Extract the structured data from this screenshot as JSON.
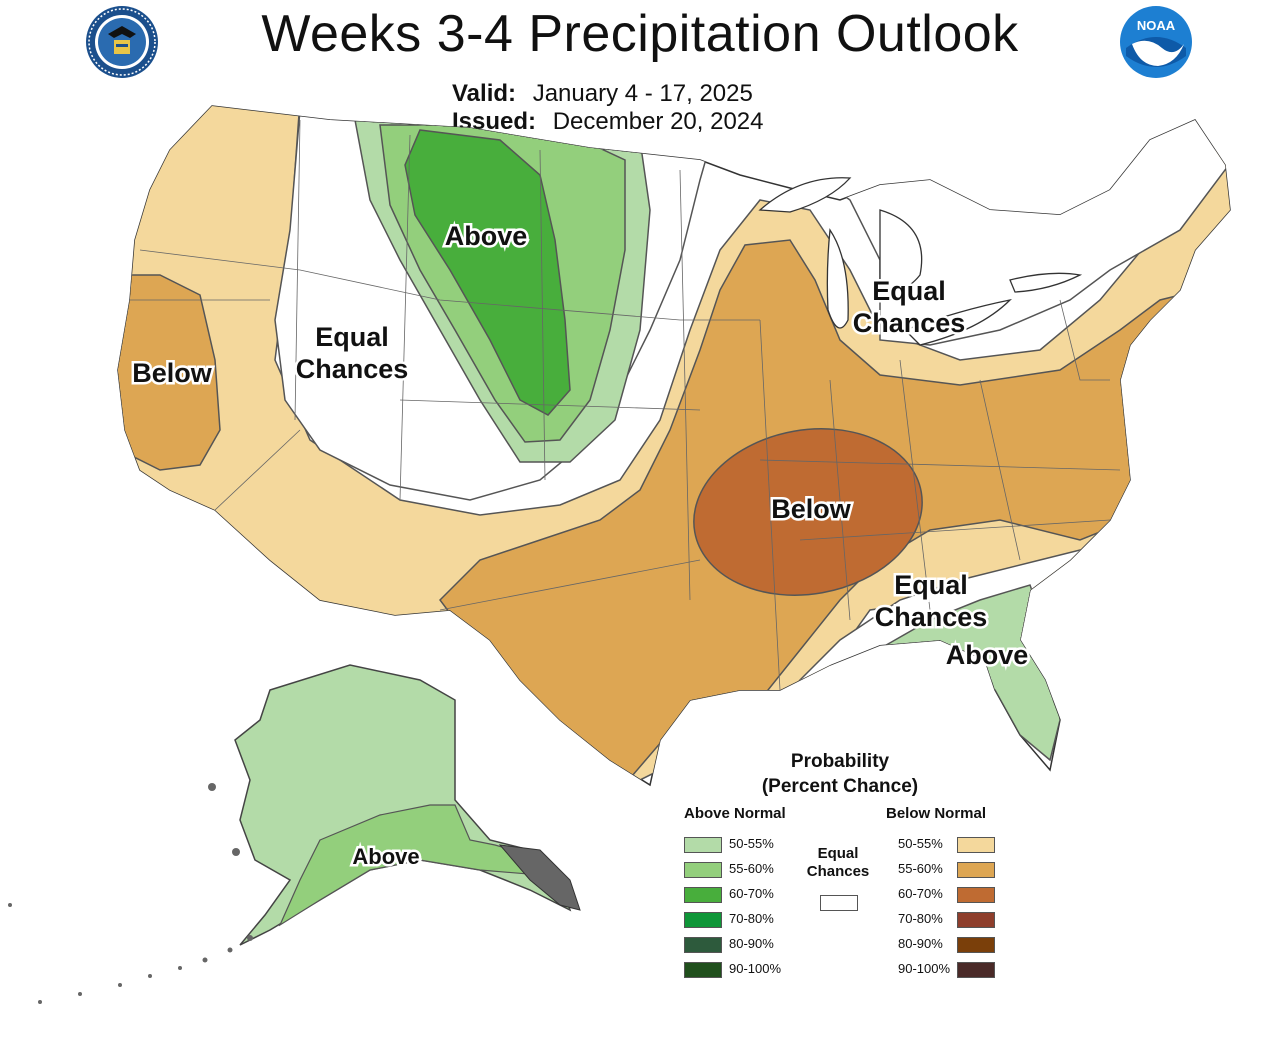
{
  "header": {
    "title": "Weeks 3-4 Precipitation Outlook",
    "valid_label": "Valid:",
    "valid_value": "January 4 - 17, 2025",
    "issued_label": "Issued:",
    "issued_value": "December 20, 2024"
  },
  "logos": {
    "left": "department-of-commerce-seal",
    "right": "noaa-logo",
    "right_text": "NOAA"
  },
  "regions": {
    "north_plains": "Above",
    "west_coast": "Below",
    "mountain_west": [
      "Equal",
      "Chances"
    ],
    "great_lakes": [
      "Equal",
      "Chances"
    ],
    "mid_south": "Below",
    "southeast": [
      "Equal",
      "Chances"
    ],
    "florida_georgia": "Above",
    "alaska": "Above"
  },
  "legend": {
    "title_line1": "Probability",
    "title_line2": "(Percent Chance)",
    "above_header": "Above Normal",
    "below_header": "Below Normal",
    "equal_line1": "Equal",
    "equal_line2": "Chances",
    "above": [
      {
        "label": "50-55%",
        "color": "#b3dba8"
      },
      {
        "label": "55-60%",
        "color": "#93cf7c"
      },
      {
        "label": "60-70%",
        "color": "#48ae3c"
      },
      {
        "label": "70-80%",
        "color": "#0f9638"
      },
      {
        "label": "80-90%",
        "color": "#2d5a3c"
      },
      {
        "label": "90-100%",
        "color": "#204f1c"
      }
    ],
    "below": [
      {
        "label": "50-55%",
        "color": "#f4d89c"
      },
      {
        "label": "55-60%",
        "color": "#dda653"
      },
      {
        "label": "60-70%",
        "color": "#bf6b32"
      },
      {
        "label": "70-80%",
        "color": "#8e3e2c"
      },
      {
        "label": "80-90%",
        "color": "#7a3f0a"
      },
      {
        "label": "90-100%",
        "color": "#4a2a28"
      }
    ],
    "equal_color": "#ffffff"
  }
}
